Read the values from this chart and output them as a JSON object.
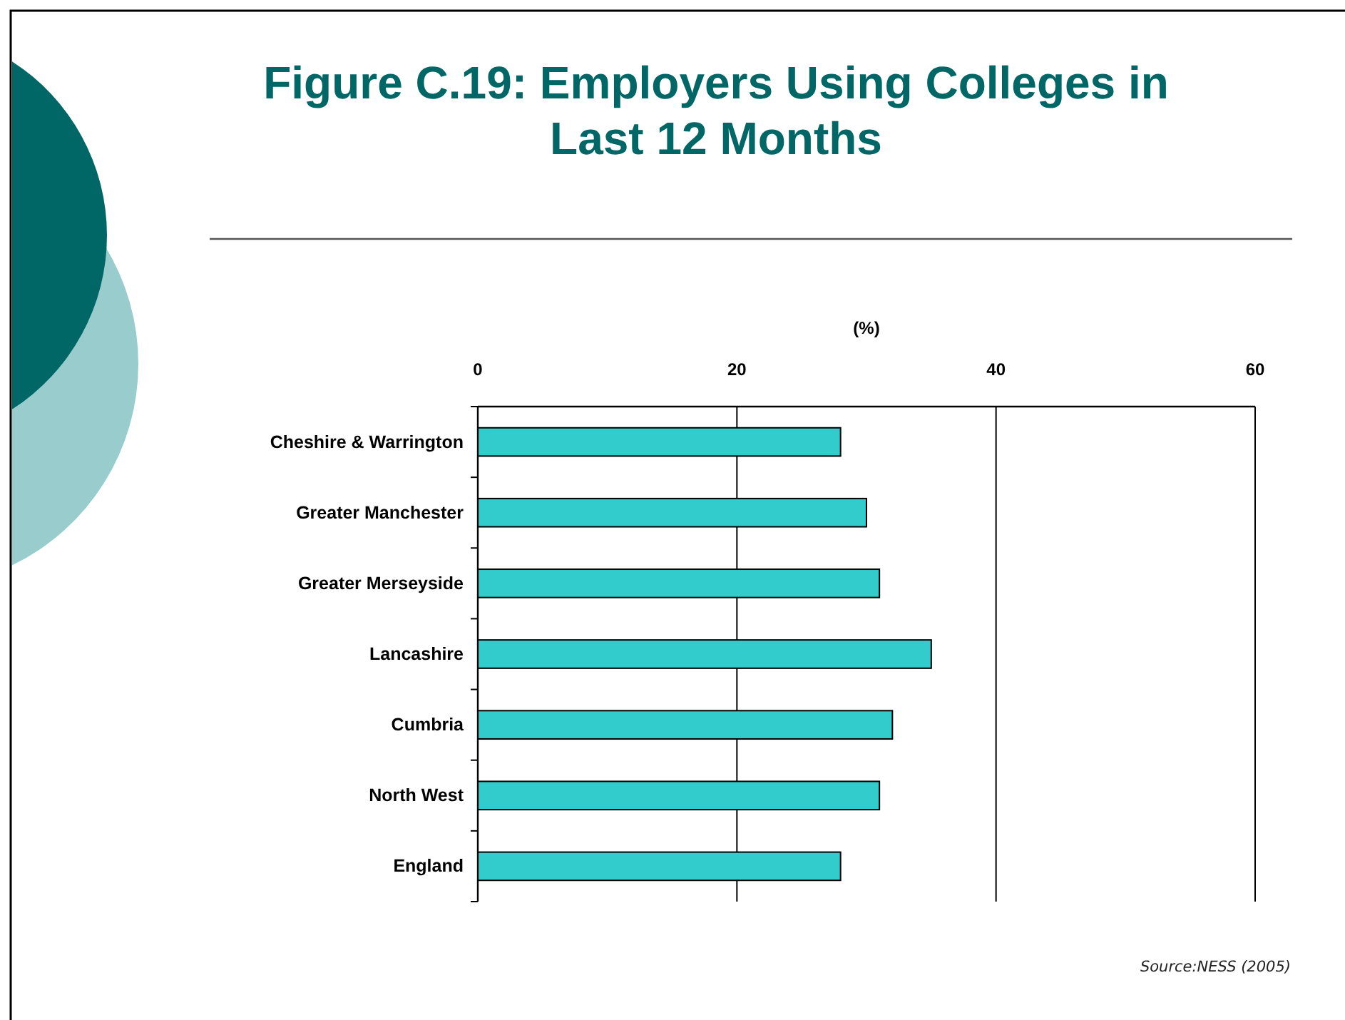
{
  "chart_data": {
    "type": "bar",
    "orientation": "horizontal",
    "title": "Figure C.19: Employers Using Colleges in Last 12 Months",
    "xlabel": "(%)",
    "categories": [
      "Cheshire & Warrington",
      "Greater Manchester",
      "Greater Merseyside",
      "Lancashire",
      "Cumbria",
      "North West",
      "England"
    ],
    "values": [
      28,
      30,
      31,
      35,
      32,
      31,
      28
    ],
    "color": "#33cccc",
    "xlim": [
      0,
      60
    ],
    "xticks": [
      0,
      20,
      40,
      60
    ],
    "grid": "x",
    "annotations": [
      "Source:NESS (2005)"
    ]
  }
}
